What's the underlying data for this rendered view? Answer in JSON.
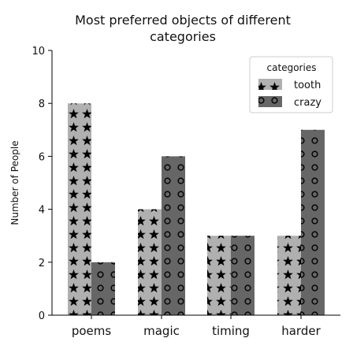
{
  "chart_data": {
    "type": "bar",
    "title_lines": [
      "Most preferred objects of different",
      "categories"
    ],
    "xlabel": "",
    "ylabel": "Number of People",
    "categories": [
      "poems",
      "magic",
      "timing",
      "harder"
    ],
    "series": [
      {
        "name": "tooth",
        "values": [
          8,
          4,
          3,
          3
        ],
        "color": "#b0b0b0",
        "pattern": "star"
      },
      {
        "name": "crazy",
        "values": [
          2,
          6,
          3,
          7
        ],
        "color": "#666666",
        "pattern": "circle"
      }
    ],
    "ylim": [
      0,
      10
    ],
    "yticks": [
      0,
      2,
      4,
      6,
      8,
      10
    ],
    "legend": {
      "title": "categories",
      "placement": "top-right"
    },
    "grid": false
  }
}
